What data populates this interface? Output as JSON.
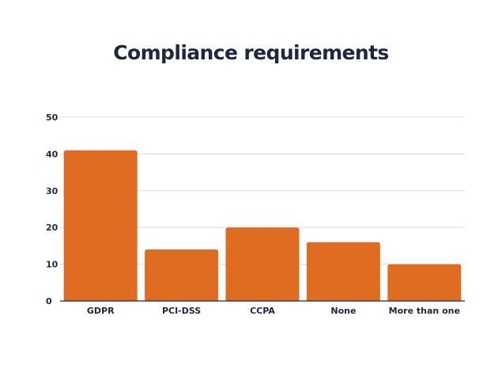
{
  "chart_data": {
    "type": "bar",
    "title": "Compliance requirements",
    "categories": [
      "GDPR",
      "PCI-DSS",
      "CCPA",
      "None",
      "More than one"
    ],
    "values": [
      41,
      14,
      20,
      16,
      10
    ],
    "ylim": [
      0,
      50
    ],
    "yticks": [
      0,
      10,
      20,
      30,
      40,
      50
    ],
    "grid": true,
    "bar_color": "#e06c22",
    "text_color": "#1e2640",
    "grid_color": "#dcdcdc"
  }
}
